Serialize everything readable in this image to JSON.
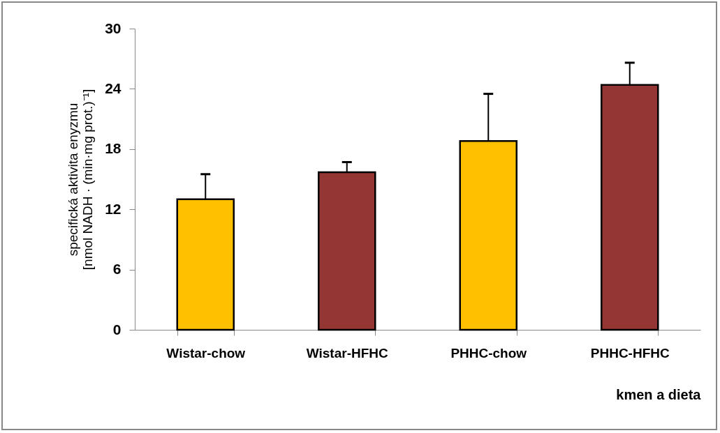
{
  "chart_data": {
    "type": "bar",
    "ylabel": "specifická aktivita enyzmu\n[nmol NADH  · (min·mg prot.)⁻¹]",
    "xlabel": "kmen a dieta",
    "categories": [
      "Wistar-chow",
      "Wistar-HFHC",
      "PHHC-chow",
      "PHHC-HFHC"
    ],
    "values": [
      13.0,
      15.7,
      18.8,
      24.4
    ],
    "errors": [
      2.5,
      1.0,
      4.7,
      2.2
    ],
    "colors": [
      "#ffc000",
      "#943634",
      "#ffc000",
      "#943634"
    ],
    "ylim": [
      0,
      30
    ],
    "yticks": [
      0,
      6,
      12,
      18,
      24,
      30
    ],
    "grid": false
  }
}
